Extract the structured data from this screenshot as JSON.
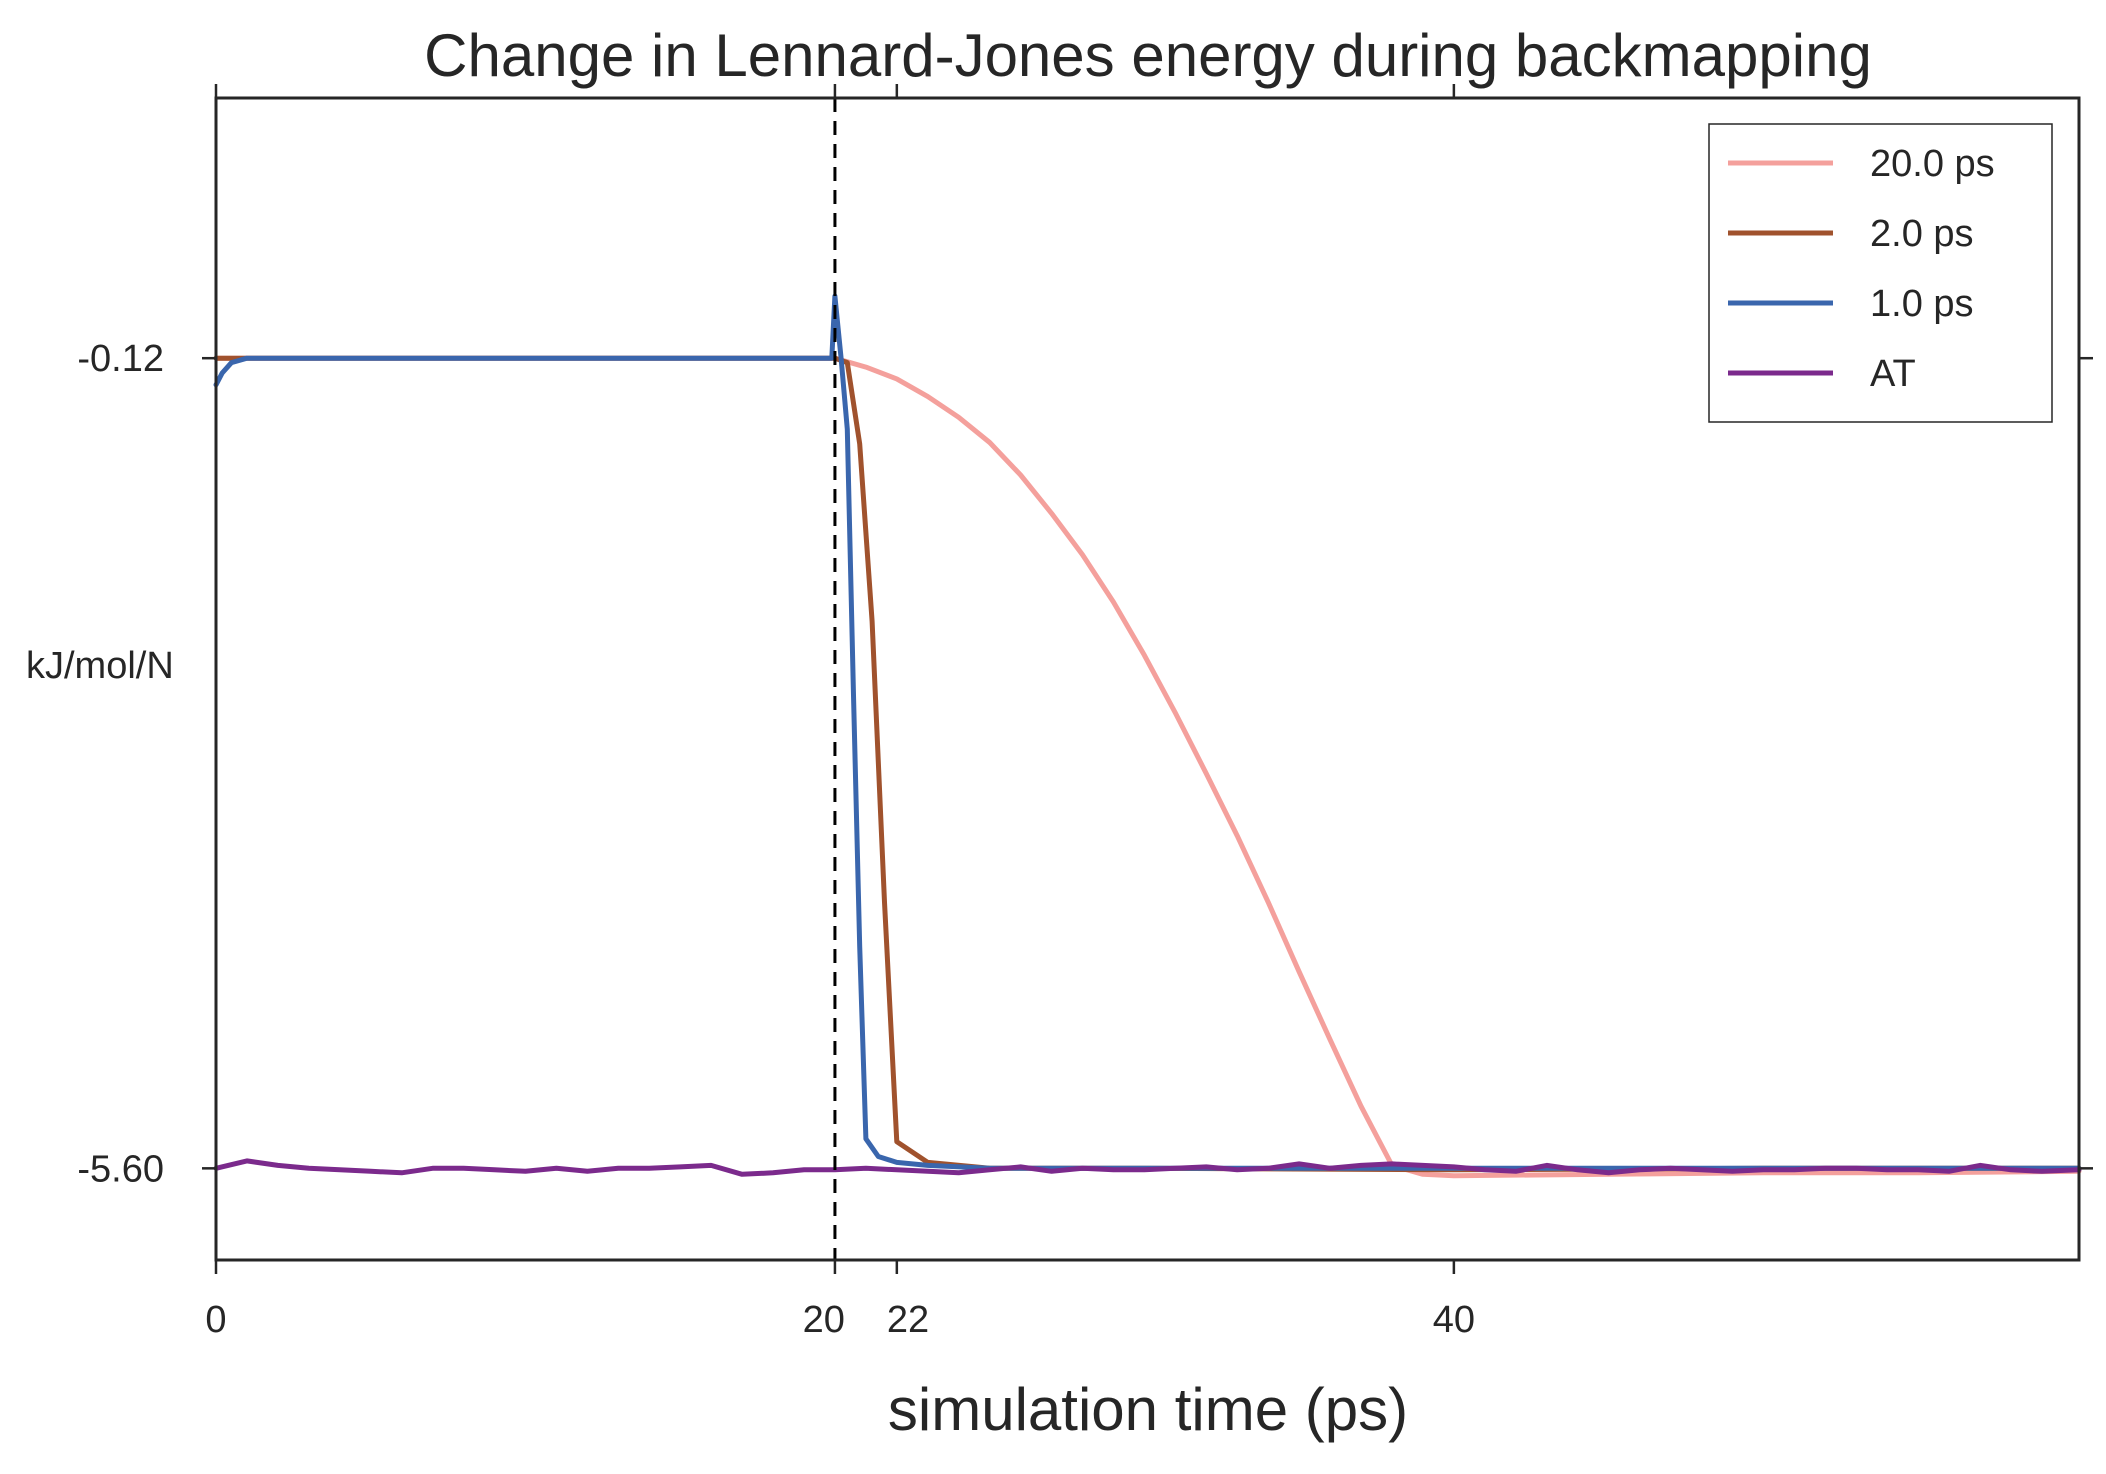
{
  "chart_data": {
    "type": "line",
    "title": "Change in Lennard-Jones energy during backmapping",
    "xlabel": "simulation time (ps)",
    "ylabel": "kJ/mol/N",
    "xlim": [
      0,
      60.2
    ],
    "ylim": [
      -6.22,
      1.64
    ],
    "x_ticks": [
      0,
      20,
      22,
      40
    ],
    "x_tick_labels": [
      "0",
      "20",
      "22",
      "40"
    ],
    "y_ticks": [
      -0.12,
      -5.6
    ],
    "y_tick_labels": [
      "-0.12",
      "-5.60"
    ],
    "vline_x": 20,
    "grid": false,
    "legend": {
      "position": "top-right",
      "entries": [
        "20.0 ps",
        "2.0 ps",
        "1.0 ps",
        "AT"
      ]
    },
    "series": [
      {
        "name": "20.0 ps",
        "color": "#f4a09c",
        "x": [
          0,
          0.5,
          1,
          2,
          5,
          10,
          15,
          20,
          21,
          22,
          23,
          24,
          25,
          26,
          27,
          28,
          29,
          30,
          31,
          32,
          33,
          34,
          35,
          36,
          37,
          38,
          39,
          40,
          45,
          50,
          55,
          60.2
        ],
        "y": [
          -0.12,
          -0.12,
          -0.12,
          -0.12,
          -0.12,
          -0.12,
          -0.12,
          -0.12,
          -0.18,
          -0.26,
          -0.38,
          -0.52,
          -0.69,
          -0.91,
          -1.17,
          -1.45,
          -1.77,
          -2.13,
          -2.52,
          -2.93,
          -3.35,
          -3.8,
          -4.27,
          -4.73,
          -5.18,
          -5.58,
          -5.64,
          -5.65,
          -5.64,
          -5.63,
          -5.63,
          -5.62
        ]
      },
      {
        "name": "2.0 ps",
        "color": "#a0522d",
        "x": [
          0,
          0.5,
          1,
          2,
          5,
          10,
          15,
          20,
          20.4,
          20.8,
          21.2,
          21.6,
          22,
          23,
          25,
          30,
          40,
          50,
          60.2
        ],
        "y": [
          -0.12,
          -0.12,
          -0.12,
          -0.12,
          -0.12,
          -0.12,
          -0.12,
          -0.12,
          -0.15,
          -0.7,
          -1.9,
          -3.8,
          -5.42,
          -5.56,
          -5.6,
          -5.6,
          -5.61,
          -5.6,
          -5.6
        ]
      },
      {
        "name": "1.0 ps",
        "color": "#3a66ad",
        "x": [
          0,
          0.2,
          0.5,
          1,
          2,
          5,
          10,
          15,
          19.9,
          20,
          20.2,
          20.4,
          20.6,
          20.8,
          21,
          21.4,
          22,
          23,
          25,
          30,
          40,
          50,
          60.2
        ],
        "y": [
          -0.3,
          -0.22,
          -0.15,
          -0.12,
          -0.12,
          -0.12,
          -0.12,
          -0.12,
          -0.12,
          0.3,
          -0.12,
          -0.6,
          -2.4,
          -4.1,
          -5.4,
          -5.52,
          -5.56,
          -5.58,
          -5.6,
          -5.6,
          -5.6,
          -5.6,
          -5.6
        ]
      },
      {
        "name": "AT",
        "color": "#7b2a8c",
        "x": [
          0,
          1,
          2,
          3,
          4,
          5,
          6,
          7,
          8,
          9,
          10,
          11,
          12,
          13,
          14,
          15,
          16,
          17,
          18,
          19,
          20,
          21,
          22,
          23,
          24,
          25,
          26,
          27,
          28,
          29,
          30,
          31,
          32,
          33,
          34,
          35,
          36,
          37,
          38,
          39,
          40,
          41,
          42,
          43,
          44,
          45,
          46,
          47,
          48,
          49,
          50,
          51,
          52,
          53,
          54,
          55,
          56,
          57,
          58,
          59,
          60.2
        ],
        "y": [
          -5.6,
          -5.55,
          -5.58,
          -5.6,
          -5.61,
          -5.62,
          -5.63,
          -5.6,
          -5.6,
          -5.61,
          -5.62,
          -5.6,
          -5.62,
          -5.6,
          -5.6,
          -5.59,
          -5.58,
          -5.64,
          -5.63,
          -5.61,
          -5.61,
          -5.6,
          -5.61,
          -5.62,
          -5.63,
          -5.61,
          -5.59,
          -5.62,
          -5.6,
          -5.61,
          -5.61,
          -5.6,
          -5.59,
          -5.61,
          -5.6,
          -5.57,
          -5.6,
          -5.58,
          -5.57,
          -5.58,
          -5.59,
          -5.61,
          -5.62,
          -5.58,
          -5.61,
          -5.63,
          -5.61,
          -5.6,
          -5.61,
          -5.62,
          -5.61,
          -5.61,
          -5.6,
          -5.6,
          -5.61,
          -5.61,
          -5.62,
          -5.58,
          -5.61,
          -5.62,
          -5.61
        ]
      }
    ]
  }
}
